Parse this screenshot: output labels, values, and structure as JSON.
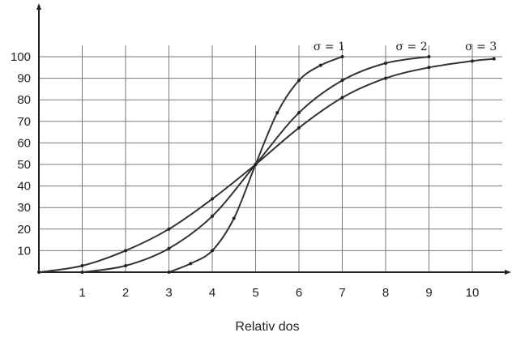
{
  "chart_data": {
    "type": "line",
    "xlabel": "Relativ dos",
    "ylabel": "",
    "xlim": [
      0,
      11
    ],
    "ylim": [
      0,
      100
    ],
    "x_ticks": [
      1,
      2,
      3,
      4,
      5,
      6,
      7,
      8,
      9,
      10
    ],
    "y_ticks": [
      10,
      20,
      30,
      40,
      50,
      60,
      70,
      80,
      90,
      100
    ],
    "grid": true,
    "series": [
      {
        "name": "σ = 1",
        "color": "#333333",
        "x": [
          3,
          3.5,
          4,
          4.5,
          5,
          5.5,
          6,
          6.5,
          7
        ],
        "y": [
          0,
          4,
          10,
          25,
          50,
          74,
          89,
          96,
          100
        ]
      },
      {
        "name": "σ = 2",
        "color": "#333333",
        "x": [
          1,
          2,
          3,
          4,
          5,
          6,
          7,
          8,
          9
        ],
        "y": [
          0,
          3,
          11,
          26,
          50,
          74,
          89,
          97,
          100
        ]
      },
      {
        "name": "σ = 3",
        "color": "#333333",
        "x": [
          0,
          1,
          2,
          3,
          4,
          5,
          6,
          7,
          8,
          9,
          10,
          10.5
        ],
        "y": [
          0,
          3,
          10,
          20,
          34,
          50,
          67,
          81,
          90,
          95,
          98,
          99
        ]
      }
    ],
    "series_labels": [
      "σ = 1",
      "σ = 2",
      "σ = 3"
    ]
  }
}
